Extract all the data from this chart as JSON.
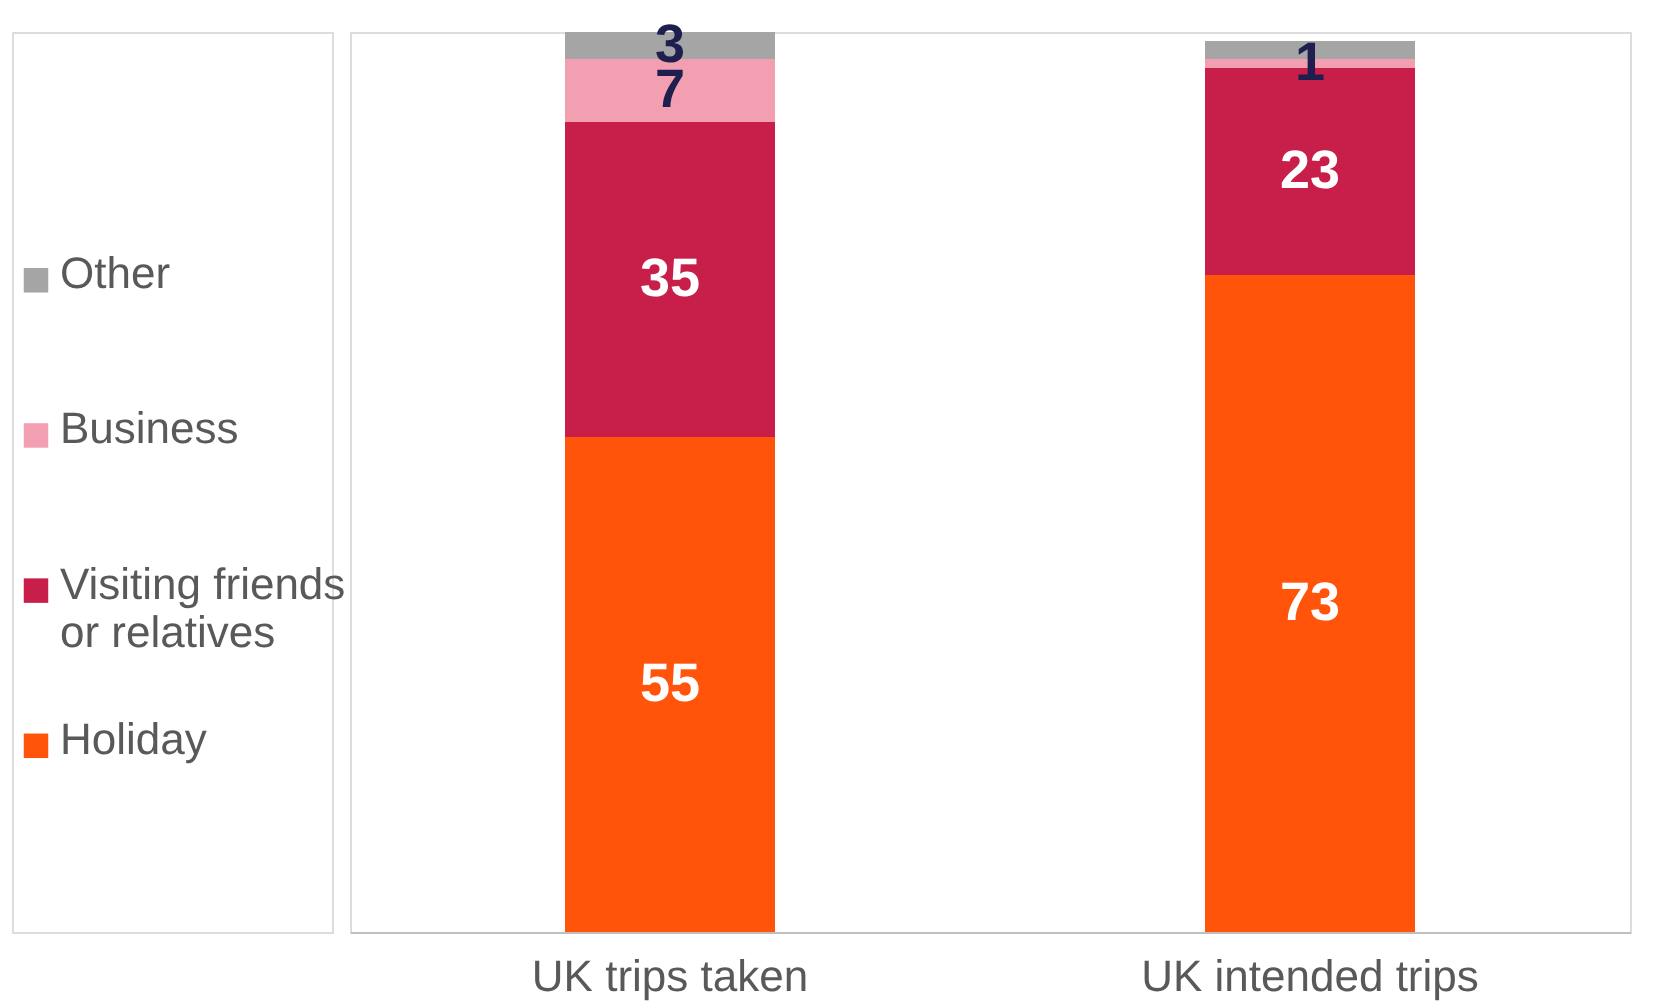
{
  "chart_data": {
    "type": "bar",
    "stacked": true,
    "categories": [
      "UK trips taken",
      "UK intended trips"
    ],
    "series": [
      {
        "name": "Holiday",
        "color": "#ff5409",
        "values": [
          55,
          73
        ],
        "value_labels": [
          "55",
          "73"
        ]
      },
      {
        "name": "Visiting friends or relatives",
        "color": "#c81e4a",
        "values": [
          35,
          23
        ],
        "value_labels": [
          "35",
          "23"
        ]
      },
      {
        "name": "Business",
        "color": "#f29fb1",
        "values": [
          7,
          1
        ],
        "value_labels": [
          "7",
          "1"
        ]
      },
      {
        "name": "Other",
        "color": "#a5a5a5",
        "values": [
          3,
          2
        ],
        "value_labels": [
          "3",
          null
        ]
      }
    ],
    "legend": "left",
    "grid": false
  }
}
